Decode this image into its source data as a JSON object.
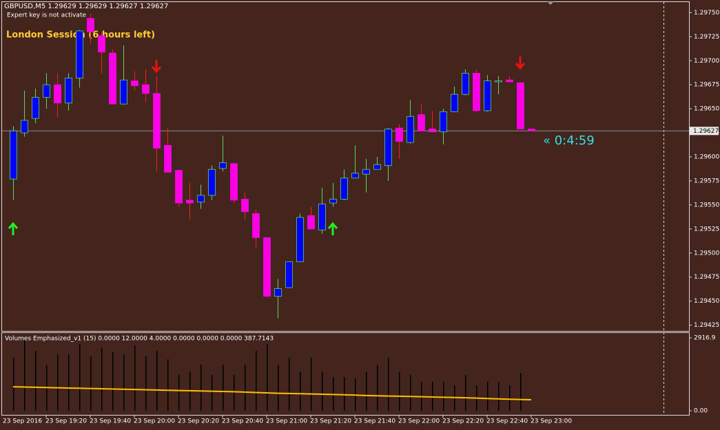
{
  "header": {
    "symbol_line": "GBPUSD,M5  1.29629 1.29629 1.29627 1.29627",
    "notice": "Expert key is not activate"
  },
  "session_label": "London Session (6 hours left)",
  "countdown": "« 0:4:59",
  "date_label": "23 Sep 2016",
  "chart_data": [
    {
      "type": "candlestick",
      "categories": [
        null,
        null,
        null,
        "23 Sep 19:20",
        null,
        null,
        null,
        "23 Sep 19:40",
        null,
        null,
        null,
        "23 Sep 20:00",
        null,
        null,
        null,
        "23 Sep 20:20",
        null,
        null,
        null,
        "23 Sep 20:40",
        null,
        null,
        null,
        "23 Sep 21:00",
        null,
        null,
        null,
        "23 Sep 21:20",
        null,
        null,
        null,
        "23 Sep 21:40",
        null,
        null,
        null,
        "23 Sep 22:00",
        null,
        null,
        null,
        "23 Sep 22:20",
        null,
        null,
        null,
        "23 Sep 22:40",
        null,
        null,
        null,
        "23 Sep 23:00"
      ],
      "open": [
        1.29577,
        1.29625,
        1.2964,
        1.29662,
        1.29675,
        1.29656,
        1.29682,
        1.29744,
        1.29726,
        1.29708,
        1.29655,
        1.29679,
        1.29675,
        1.29666,
        1.29612,
        1.29586,
        1.29555,
        1.29553,
        1.2956,
        1.29588,
        1.29593,
        1.29556,
        1.29541,
        1.29516,
        1.29455,
        1.29464,
        1.29491,
        1.29539,
        1.29524,
        1.29552,
        1.29556,
        1.29578,
        1.29582,
        1.29587,
        1.29591,
        1.2963,
        1.29615,
        1.29644,
        1.29629,
        1.29626,
        1.29647,
        1.29665,
        1.29687,
        1.29648,
        1.29678,
        1.2968,
        1.29677,
        1.29629
      ],
      "high": [
        1.29632,
        1.29669,
        1.29671,
        1.29687,
        1.29687,
        1.29687,
        1.29732,
        1.29749,
        1.2973,
        1.29712,
        1.29716,
        1.29689,
        1.29691,
        1.29684,
        1.2963,
        1.29586,
        1.29573,
        1.29571,
        1.29591,
        1.29622,
        1.29593,
        1.29563,
        1.29545,
        1.29516,
        1.29473,
        1.29491,
        1.29541,
        1.29548,
        1.29568,
        1.29573,
        1.29587,
        1.29612,
        1.29598,
        1.296,
        1.2963,
        1.29634,
        1.29659,
        1.29655,
        1.29648,
        1.2965,
        1.29673,
        1.29691,
        1.29691,
        1.29685,
        1.29684,
        1.29684,
        1.29678,
        1.29629
      ],
      "low": [
        1.29555,
        1.29621,
        1.29635,
        1.2965,
        1.29641,
        1.29648,
        1.29672,
        1.29718,
        1.29687,
        1.29655,
        1.29655,
        1.29669,
        1.29657,
        1.29585,
        1.29584,
        1.29548,
        1.29535,
        1.29546,
        1.29555,
        1.29585,
        1.29552,
        1.29535,
        1.29506,
        1.29455,
        1.29432,
        1.29464,
        1.29491,
        1.29525,
        1.2952,
        1.29548,
        1.29555,
        1.29578,
        1.29563,
        1.29587,
        1.29575,
        1.29598,
        1.29614,
        1.29627,
        1.29626,
        1.29613,
        1.29647,
        1.29664,
        1.29647,
        1.29647,
        1.29665,
        1.29678,
        1.29629,
        1.29627
      ],
      "close": [
        1.29627,
        1.29638,
        1.29662,
        1.29675,
        1.29656,
        1.29682,
        1.29731,
        1.2973,
        1.29709,
        1.29655,
        1.2968,
        1.29674,
        1.29666,
        1.29609,
        1.29584,
        1.29552,
        1.29552,
        1.2956,
        1.29587,
        1.29594,
        1.29555,
        1.29543,
        1.29516,
        1.29455,
        1.29463,
        1.29491,
        1.29537,
        1.29525,
        1.29551,
        1.29556,
        1.29578,
        1.29583,
        1.29587,
        1.29592,
        1.29629,
        1.29616,
        1.29642,
        1.29627,
        1.29626,
        1.29647,
        1.29665,
        1.29687,
        1.29648,
        1.29679,
        1.29679,
        1.29678,
        1.29629,
        1.29627
      ],
      "up_color": "#0000ff",
      "down_color": "#ff00e6",
      "up_wick": "#5fd35f",
      "down_wick": "#ff1a1a",
      "ylim": [
        1.29419,
        1.29761
      ],
      "yticks": [
        {
          "value": 1.29425,
          "label": "1.29425"
        },
        {
          "value": 1.2945,
          "label": "1.29450"
        },
        {
          "value": 1.29475,
          "label": "1.29475"
        },
        {
          "value": 1.295,
          "label": "1.29500"
        },
        {
          "value": 1.29525,
          "label": "1.29525"
        },
        {
          "value": 1.2955,
          "label": "1.29550"
        },
        {
          "value": 1.29575,
          "label": "1.29575"
        },
        {
          "value": 1.296,
          "label": "1.29600"
        },
        {
          "value": 1.29625,
          "label": "1.29625"
        },
        {
          "value": 1.2965,
          "label": "1.29650"
        },
        {
          "value": 1.29675,
          "label": "1.29675"
        },
        {
          "value": 1.297,
          "label": "1.29700"
        },
        {
          "value": 1.29725,
          "label": "1.29725"
        },
        {
          "value": 1.2975,
          "label": "1.29750"
        }
      ],
      "current_price": 1.29627
    },
    {
      "type": "bar",
      "title": "Volumes Emphasized_v1  (15)  0.0000 12.0000 4.0000 0.0000 0.0000 0.0000 387.7143",
      "values": [
        2118,
        2805,
        2393,
        1843,
        2255,
        2255,
        2668,
        2173,
        2530,
        2338,
        2255,
        2613,
        2173,
        2393,
        2063,
        1430,
        1568,
        1843,
        1430,
        1843,
        1430,
        1843,
        2393,
        2668,
        1843,
        2118,
        1568,
        2118,
        1568,
        1348,
        1348,
        1293,
        1568,
        1843,
        2118,
        1568,
        1430,
        1155,
        1155,
        1155,
        1018,
        1430,
        1018,
        1155,
        1155,
        1018,
        1513,
        12
      ],
      "color": "#000000",
      "ma_values": [
        960,
        950,
        940,
        930,
        920,
        910,
        900,
        890,
        880,
        870,
        860,
        850,
        840,
        830,
        820,
        810,
        800,
        790,
        780,
        770,
        760,
        745,
        730,
        715,
        700,
        690,
        680,
        670,
        660,
        650,
        640,
        625,
        610,
        600,
        590,
        580,
        570,
        560,
        550,
        540,
        530,
        520,
        505,
        490,
        475,
        460,
        450,
        440
      ],
      "ma_color": "#ffc000",
      "ylim": [
        -165,
        3110
      ],
      "yticks": [
        {
          "value": 0,
          "label": "0.00"
        },
        2916.9
      ]
    }
  ]
}
